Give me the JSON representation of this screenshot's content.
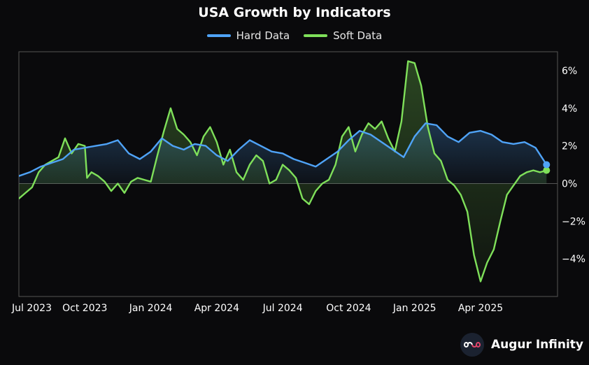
{
  "colors": {
    "background": "#0a0a0c",
    "hard": "#4fa3f7",
    "soft": "#7fe05a",
    "grid": "#555555",
    "axis_text": "#ffffff"
  },
  "chart_data": {
    "type": "line",
    "title": "USA Growth by Indicators",
    "legend_position": "top",
    "xlabel": "",
    "ylabel": "",
    "x_tick_labels": [
      "Jul 2023",
      "Oct 2023",
      "Jan 2024",
      "Apr 2024",
      "Jul 2024",
      "Oct 2024",
      "Jan 2025",
      "Apr 2025"
    ],
    "x_tick_months": [
      0,
      3,
      6,
      9,
      12,
      15,
      18,
      21
    ],
    "x_range_months": [
      0,
      24.5
    ],
    "y_tick_values": [
      6,
      4,
      2,
      0,
      -2,
      -4
    ],
    "y_tick_labels": [
      "6%",
      "4%",
      "2%",
      "0%",
      "−2%",
      "−4%"
    ],
    "ylim": [
      -6,
      7
    ],
    "zero_line": true,
    "series": [
      {
        "name": "Hard Data",
        "color_key": "hard",
        "x": [
          0,
          0.5,
          1.0,
          1.5,
          2.0,
          2.5,
          3.0,
          3.5,
          4.0,
          4.5,
          5.0,
          5.5,
          6.0,
          6.5,
          7.0,
          7.5,
          8.0,
          8.5,
          9.0,
          9.5,
          10.0,
          10.5,
          11.0,
          11.5,
          12.0,
          12.5,
          13.0,
          13.5,
          14.0,
          14.5,
          15.0,
          15.5,
          16.0,
          16.5,
          17.0,
          17.5,
          18.0,
          18.5,
          19.0,
          19.5,
          20.0,
          20.5,
          21.0,
          21.5,
          22.0,
          22.5,
          23.0,
          23.5,
          24.0
        ],
        "values": [
          0.4,
          0.6,
          0.9,
          1.1,
          1.3,
          1.8,
          1.9,
          2.0,
          2.1,
          2.3,
          1.6,
          1.3,
          1.7,
          2.4,
          2.0,
          1.8,
          2.1,
          2.0,
          1.5,
          1.2,
          1.8,
          2.3,
          2.0,
          1.7,
          1.6,
          1.3,
          1.1,
          0.9,
          1.3,
          1.7,
          2.3,
          2.8,
          2.6,
          2.2,
          1.8,
          1.4,
          2.5,
          3.2,
          3.1,
          2.5,
          2.2,
          2.7,
          2.8,
          2.6,
          2.2,
          2.1,
          2.2,
          1.9,
          1.0
        ]
      },
      {
        "name": "Soft Data",
        "color_key": "soft",
        "x": [
          0,
          0.3,
          0.6,
          0.9,
          1.2,
          1.5,
          1.8,
          2.1,
          2.4,
          2.7,
          3.0,
          3.1,
          3.3,
          3.6,
          3.9,
          4.2,
          4.5,
          4.8,
          5.1,
          5.4,
          5.7,
          6.0,
          6.3,
          6.6,
          6.9,
          7.2,
          7.5,
          7.8,
          8.1,
          8.4,
          8.7,
          9.0,
          9.3,
          9.6,
          9.9,
          10.2,
          10.5,
          10.8,
          11.1,
          11.4,
          11.7,
          12.0,
          12.3,
          12.6,
          12.9,
          13.2,
          13.5,
          13.8,
          14.1,
          14.4,
          14.7,
          15.0,
          15.3,
          15.6,
          15.9,
          16.2,
          16.5,
          16.8,
          17.1,
          17.4,
          17.7,
          18.0,
          18.3,
          18.6,
          18.9,
          19.2,
          19.5,
          19.8,
          20.1,
          20.4,
          20.7,
          21.0,
          21.3,
          21.6,
          21.9,
          22.2,
          22.5,
          22.8,
          23.1,
          23.4,
          23.7,
          24.0
        ],
        "values": [
          -0.8,
          -0.5,
          -0.2,
          0.6,
          1.0,
          1.2,
          1.4,
          2.4,
          1.6,
          2.1,
          2.0,
          0.3,
          0.6,
          0.4,
          0.1,
          -0.4,
          0.0,
          -0.5,
          0.1,
          0.3,
          0.2,
          0.1,
          1.5,
          2.8,
          4.0,
          2.9,
          2.6,
          2.2,
          1.5,
          2.5,
          3.0,
          2.2,
          1.0,
          1.8,
          0.6,
          0.2,
          1.0,
          1.5,
          1.2,
          0.0,
          0.2,
          1.0,
          0.7,
          0.3,
          -0.8,
          -1.1,
          -0.4,
          0.0,
          0.2,
          1.0,
          2.5,
          3.0,
          1.7,
          2.6,
          3.2,
          2.9,
          3.3,
          2.4,
          1.7,
          3.3,
          6.5,
          6.4,
          5.2,
          3.0,
          1.6,
          1.2,
          0.2,
          -0.1,
          -0.6,
          -1.5,
          -3.8,
          -5.2,
          -4.2,
          -3.5,
          -2.0,
          -0.6,
          -0.1,
          0.4,
          0.6,
          0.7,
          0.6,
          0.7
        ]
      }
    ]
  },
  "branding": {
    "logo_text": "Augur Infinity"
  }
}
